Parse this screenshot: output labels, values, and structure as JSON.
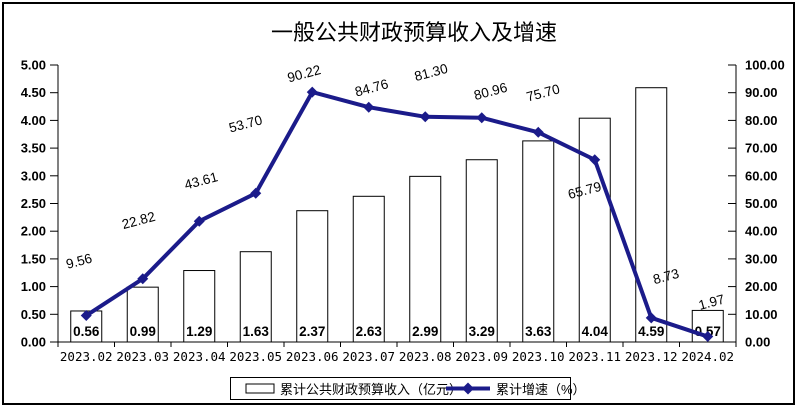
{
  "window": {
    "background": "#ffffff",
    "border_color": "#000000"
  },
  "chart_data": {
    "type": "bar",
    "combo": "bar+line, dual axis",
    "title": "一般公共财政预算收入及增速",
    "categories": [
      "2023.02",
      "2023.03",
      "2023.04",
      "2023.05",
      "2023.06",
      "2023.07",
      "2023.08",
      "2023.09",
      "2023.10",
      "2023.11",
      "2023.12",
      "2024.02"
    ],
    "series": [
      {
        "name": "累计公共财政预算收入（亿元）",
        "type": "bar",
        "axis": "left",
        "fill": "#ffffff",
        "stroke": "#000000",
        "values": [
          0.56,
          0.99,
          1.29,
          1.63,
          2.37,
          2.63,
          2.99,
          3.29,
          3.63,
          4.04,
          4.59,
          0.57
        ],
        "labels": [
          "0.56",
          "0.99",
          "1.29",
          "1.63",
          "2.37",
          "2.63",
          "2.99",
          "3.29",
          "3.63",
          "4.04",
          "4.59",
          "0.57"
        ]
      },
      {
        "name": "累计增速（%）",
        "type": "line",
        "axis": "right",
        "color": "#1b1b8a",
        "marker": "diamond",
        "values": [
          9.56,
          22.82,
          43.61,
          53.7,
          90.22,
          84.76,
          81.3,
          80.96,
          75.7,
          65.79,
          8.73,
          1.97
        ],
        "labels": [
          "9.56",
          "22.82",
          "43.61",
          "53.70",
          "90.22",
          "84.76",
          "81.30",
          "80.96",
          "75.70",
          "65.79",
          "8.73",
          "1.97"
        ]
      }
    ],
    "left_axis": {
      "min": 0,
      "max": 5,
      "step": 0.5,
      "tick_labels": [
        "0.00",
        "0.50",
        "1.00",
        "1.50",
        "2.00",
        "2.50",
        "3.00",
        "3.50",
        "4.00",
        "4.50",
        "5.00"
      ]
    },
    "right_axis": {
      "min": 0,
      "max": 100,
      "step": 10,
      "tick_labels": [
        "0.00",
        "10.00",
        "20.00",
        "30.00",
        "40.00",
        "50.00",
        "60.00",
        "70.00",
        "80.00",
        "90.00",
        "100.00"
      ]
    },
    "legend": {
      "position": "bottom",
      "items": [
        "累计公共财政预算收入（亿元）",
        "累计增速（%）"
      ]
    },
    "grid": false
  }
}
